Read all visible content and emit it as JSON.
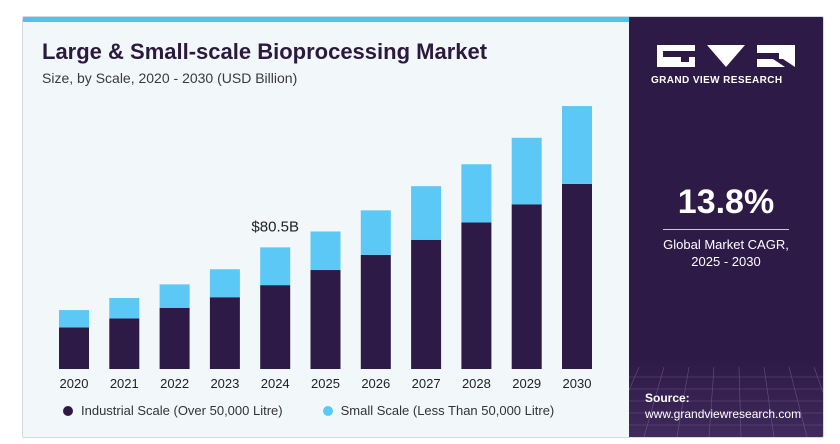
{
  "header": {
    "title": "Large & Small-scale Bioprocessing Market",
    "subtitle": "Size, by  Scale, 2020 - 2030 (USD Billion)"
  },
  "colors": {
    "industrial": "#2e1a47",
    "small": "#5bc8f5",
    "accent_strip": "#4fc3f0",
    "panel": "#2e1a47"
  },
  "legend": {
    "industrial": "Industrial Scale (Over 50,000 Litre)",
    "small": "Small Scale (Less Than 50,000 Litre)"
  },
  "panel": {
    "logo_text": "GRAND VIEW RESEARCH",
    "cagr_value": "13.8%",
    "cagr_label_line1": "Global Market CAGR,",
    "cagr_label_line2": "2025 - 2030",
    "source_label": "Source:",
    "source_url": "www.grandviewresearch.com"
  },
  "chart_data": {
    "type": "bar",
    "stacked": true,
    "categories": [
      "2020",
      "2021",
      "2022",
      "2023",
      "2024",
      "2025",
      "2026",
      "2027",
      "2028",
      "2029",
      "2030"
    ],
    "series": [
      {
        "name": "Industrial Scale (Over 50,000 Litre)",
        "values": [
          27.5,
          33.5,
          40.5,
          47.5,
          55.5,
          65.5,
          75.5,
          85.5,
          97.0,
          109.0,
          122.5
        ]
      },
      {
        "name": "Small Scale (Less Than 50,000 Litre)",
        "values": [
          11.5,
          13.5,
          15.5,
          18.5,
          25.0,
          25.5,
          29.5,
          35.5,
          38.5,
          44.0,
          51.5
        ]
      }
    ],
    "annotations": [
      {
        "category": "2024",
        "text": "$80.5B"
      }
    ],
    "ylim": [
      0,
      180
    ],
    "grid": false,
    "legend_position": "bottom"
  }
}
